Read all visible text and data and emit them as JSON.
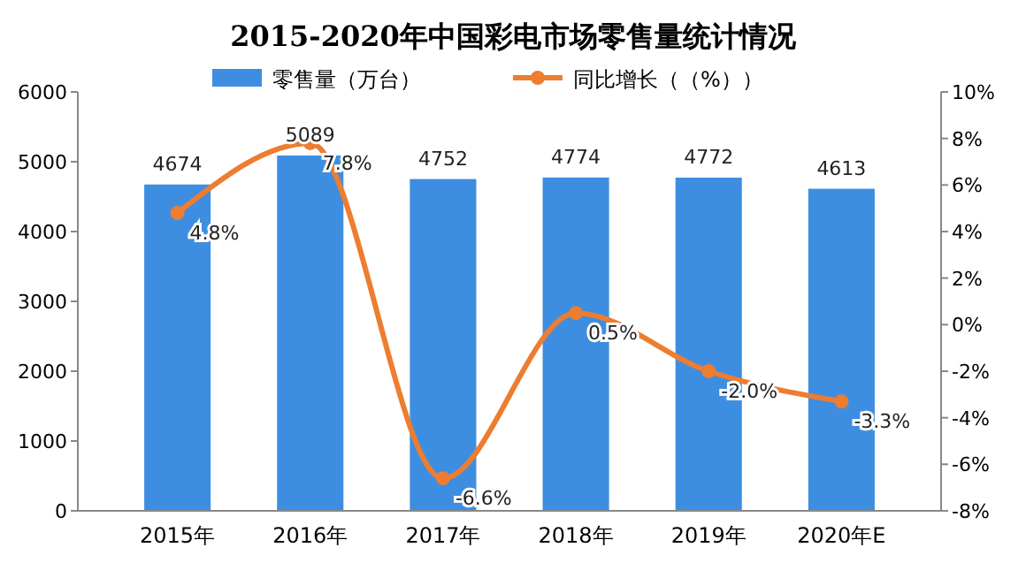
{
  "chart_data": {
    "type": "bar",
    "title": "2015-2020年中国彩电市场零售量统计情况",
    "categories": [
      "2015年",
      "2016年",
      "2017年",
      "2018年",
      "2019年",
      "2020年E"
    ],
    "series": [
      {
        "name": "零售量（万台）",
        "color": "#3d8ee0",
        "values": [
          4674,
          5089,
          4752,
          4774,
          4772,
          4613
        ]
      },
      {
        "name": "同比增长（（%））",
        "type": "line",
        "axis": "y2",
        "color": "#ed7d31",
        "values": [
          4.8,
          7.8,
          -6.6,
          0.5,
          -2.0,
          -3.3
        ],
        "value_labels": [
          "4.8%",
          "7.8%",
          "-6.6%",
          "0.5%",
          "-2.0%",
          "-3.3%"
        ]
      }
    ],
    "data_labels": true,
    "ylim": [
      0,
      6000
    ],
    "yticks": [
      0,
      1000,
      2000,
      3000,
      4000,
      5000,
      6000
    ],
    "y2lim": [
      -8,
      10
    ],
    "y2ticks": [
      {
        "value": -8,
        "label": "-8%"
      },
      {
        "value": -6,
        "label": "-6%"
      },
      {
        "value": -4,
        "label": "-4%"
      },
      {
        "value": -2,
        "label": "-2%"
      },
      {
        "value": 0,
        "label": "0%"
      },
      {
        "value": 2,
        "label": "2%"
      },
      {
        "value": 4,
        "label": "4%"
      },
      {
        "value": 6,
        "label": "6%"
      },
      {
        "value": 8,
        "label": "8%"
      },
      {
        "value": 10,
        "label": "10%"
      }
    ],
    "grid": false,
    "legend": "top",
    "marker": "circle",
    "line_style": "solid"
  }
}
